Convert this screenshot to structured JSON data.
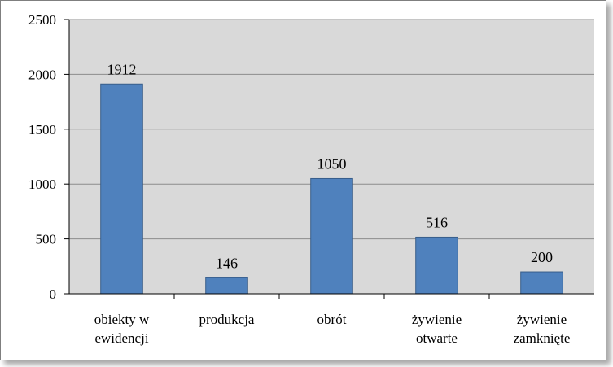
{
  "chart_data": {
    "type": "bar",
    "categories": [
      [
        "obiekty w",
        "ewidencji"
      ],
      [
        "produkcja"
      ],
      [
        "obrót"
      ],
      [
        "żywienie",
        "otwarte"
      ],
      [
        "żywienie",
        "zamknięte"
      ]
    ],
    "values": [
      1912,
      146,
      1050,
      516,
      200
    ],
    "data_labels": [
      "1912",
      "146",
      "1050",
      "516",
      "200"
    ],
    "ylim": [
      0,
      2500
    ],
    "yticks": [
      0,
      500,
      1000,
      1500,
      2000,
      2500
    ],
    "title": "",
    "xlabel": "",
    "ylabel": "",
    "grid": true,
    "legend": "none",
    "colors": {
      "bar": "#4f81bd",
      "bar_edge": "#385d8a",
      "plot_bg": "#d9d9d9",
      "grid": "#8c8c8c"
    }
  }
}
